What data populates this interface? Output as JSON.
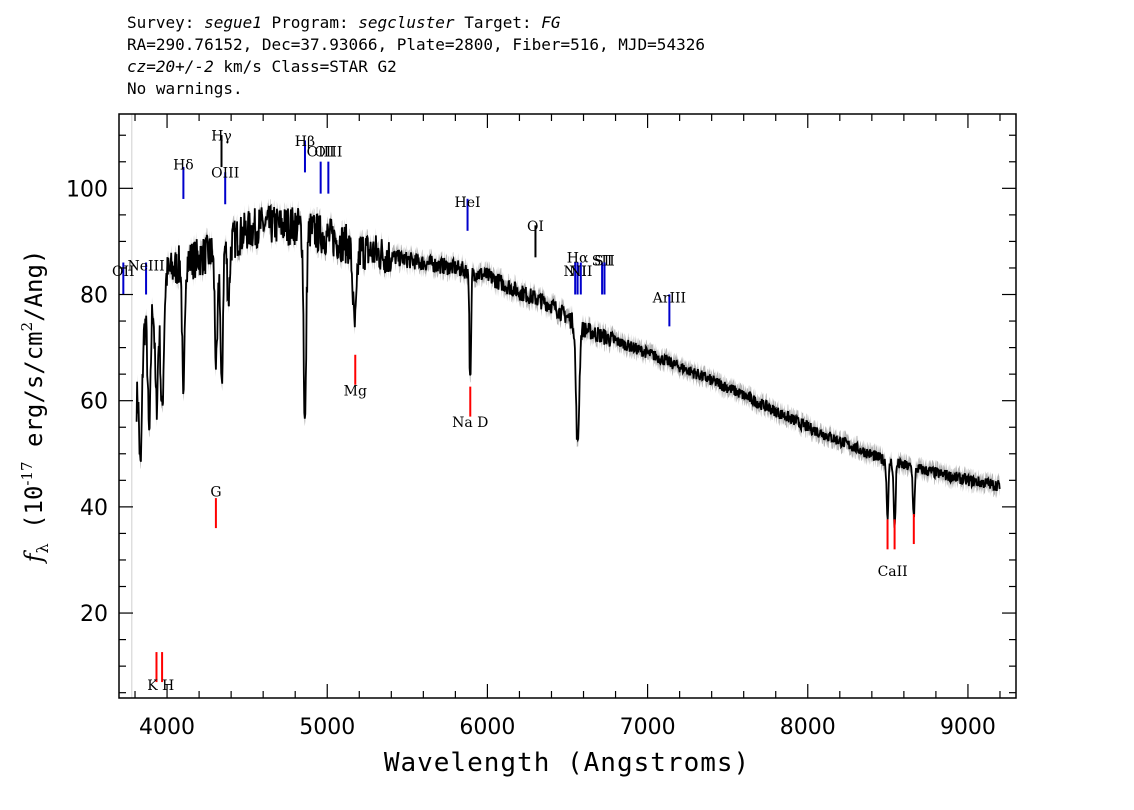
{
  "header": {
    "survey_label": "Survey:",
    "survey_value": "segue1",
    "program_label": "Program:",
    "program_value": "segcluster",
    "target_label": "Target:",
    "target_value": "FG",
    "line2": "RA=290.76152, Dec=37.93066, Plate=2800, Fiber=516, MJD=54326",
    "redshift_value": "cz=20+/-2",
    "redshift_rest": " km/s Class=STAR G2",
    "warnings": "No warnings."
  },
  "chart_data": {
    "type": "line",
    "xlabel": "Wavelength (Angstroms)",
    "ylabel_symbol": "f",
    "ylabel_subscript": "λ",
    "ylabel_open": " (10",
    "ylabel_exponent": "-17",
    "ylabel_units": " erg/s/cm",
    "ylabel_units_exp": "2",
    "ylabel_close": "/Ang)",
    "xlim": [
      3700,
      9300
    ],
    "ylim": [
      4,
      114
    ],
    "xticks": [
      4000,
      5000,
      6000,
      7000,
      8000,
      9000
    ],
    "yticks": [
      20,
      40,
      60,
      80,
      100
    ],
    "grid": false,
    "continuum": [
      [
        3810,
        60
      ],
      [
        3860,
        74
      ],
      [
        3900,
        80
      ],
      [
        4000,
        84
      ],
      [
        4100,
        86
      ],
      [
        4200,
        87
      ],
      [
        4300,
        88
      ],
      [
        4400,
        90
      ],
      [
        4500,
        92
      ],
      [
        4600,
        93
      ],
      [
        4700,
        93
      ],
      [
        4800,
        93
      ],
      [
        4900,
        92
      ],
      [
        5000,
        91
      ],
      [
        5200,
        88.5
      ],
      [
        5500,
        86.5
      ],
      [
        5800,
        85
      ],
      [
        6000,
        83.5
      ],
      [
        6200,
        80.5
      ],
      [
        6400,
        78
      ],
      [
        6600,
        73.5
      ],
      [
        7000,
        69
      ],
      [
        7500,
        62.5
      ],
      [
        8000,
        55
      ],
      [
        8500,
        48.5
      ],
      [
        9000,
        45
      ],
      [
        9200,
        44
      ]
    ],
    "absorption_lines": [
      [
        3934,
        22,
        10
      ],
      [
        3969,
        25,
        10
      ],
      [
        3835,
        20,
        8
      ],
      [
        3889,
        25,
        9
      ],
      [
        4102,
        28,
        7
      ],
      [
        4308,
        22,
        9
      ],
      [
        4341,
        28,
        7
      ],
      [
        4384,
        10,
        8
      ],
      [
        4861,
        37,
        8
      ],
      [
        5172,
        15,
        12
      ],
      [
        5890,
        14,
        4
      ],
      [
        5896,
        14,
        4
      ],
      [
        6563,
        23,
        10
      ],
      [
        8498,
        10,
        6
      ],
      [
        8542,
        12,
        6
      ],
      [
        8662,
        9,
        6
      ]
    ],
    "emission_lines": [
      {
        "name": "OII",
        "wavelength": 3727,
        "y": 80,
        "label_y": 83.5,
        "color": "#0000cc"
      },
      {
        "name": "NeIII",
        "wavelength": 3869,
        "y": 80,
        "label_y": 84.5,
        "color": "#0000cc"
      },
      {
        "name": "Hδ",
        "wavelength": 4102,
        "y": 98,
        "label_y": 103.5,
        "color": "#0000cc"
      },
      {
        "name": "Hγ",
        "wavelength": 4340,
        "y": 104,
        "label_y": 109,
        "color": "#000000"
      },
      {
        "name": "OIII",
        "wavelength": 4363,
        "y": 97,
        "label_y": 102,
        "color": "#0000cc"
      },
      {
        "name": "Hβ",
        "wavelength": 4861,
        "y": 103,
        "label_y": 108,
        "color": "#0000cc"
      },
      {
        "name": "OIII",
        "wavelength": 4959,
        "y": 99,
        "label_y": 106,
        "color": "#0000cc"
      },
      {
        "name": "OIII",
        "wavelength": 5007,
        "y": 99,
        "label_y": 106,
        "color": "#0000cc"
      },
      {
        "name": "HeI",
        "wavelength": 5876,
        "y": 92,
        "label_y": 96.5,
        "color": "#0000cc"
      },
      {
        "name": "OI",
        "wavelength": 6300,
        "y": 87,
        "label_y": 92,
        "color": "#000000"
      },
      {
        "name": "NII",
        "wavelength": 6548,
        "y": 80,
        "label_y": 83.5,
        "color": "#0000cc"
      },
      {
        "name": "Hα",
        "wavelength": 6563,
        "y": 80,
        "label_y": 86,
        "color": "#0000cc"
      },
      {
        "name": "NII",
        "wavelength": 6583,
        "y": 80,
        "label_y": 83.5,
        "color": "#0000cc"
      },
      {
        "name": "SII",
        "wavelength": 6716,
        "y": 80,
        "label_y": 85.5,
        "color": "#0000cc"
      },
      {
        "name": "SII",
        "wavelength": 6731,
        "y": 80,
        "label_y": 85.5,
        "color": "#0000cc"
      },
      {
        "name": "ArIII",
        "wavelength": 7136,
        "y": 74,
        "label_y": 78.5,
        "color": "#0000cc"
      }
    ],
    "absorption_markers": [
      {
        "name": "K",
        "wavelength": 3934,
        "y": 7,
        "label_y": 5.5
      },
      {
        "name": "H",
        "wavelength": 3969,
        "y": 7,
        "label_y": 5.5
      },
      {
        "name": "G",
        "wavelength": 4305,
        "y": 36,
        "label_y": 42
      },
      {
        "name": "Mg",
        "wavelength": 5175,
        "y": 63,
        "label_y": 61
      },
      {
        "name": "Na D",
        "wavelength": 5893,
        "y": 57,
        "label_y": 55
      },
      {
        "name": "CaII",
        "wavelength": 8498,
        "y": 32,
        "label_y": 27
      },
      {
        "name": "CaII",
        "wavelength": 8542,
        "y": 32,
        "label_y": 27
      },
      {
        "name": "CaII",
        "wavelength": 8662,
        "y": 33,
        "label_y": 27
      }
    ],
    "colors": {
      "spectrum": "#000000",
      "error_band": "#b3b3b3",
      "emission": "#0000cc",
      "absorption": "#ff0000",
      "axes": "#000000"
    }
  }
}
